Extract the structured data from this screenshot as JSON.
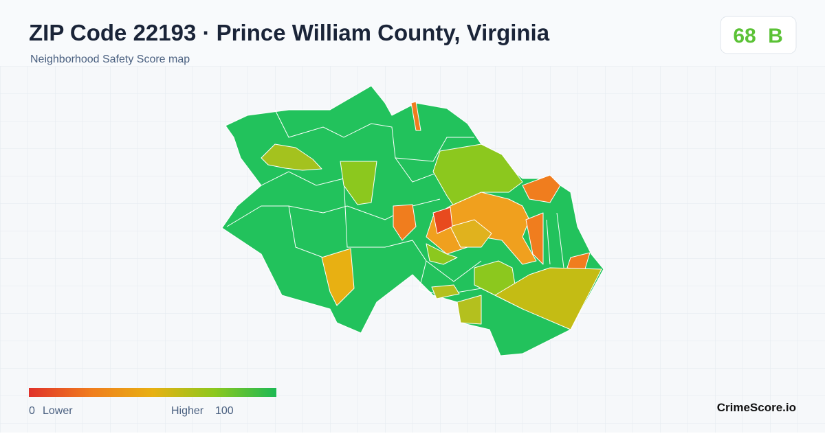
{
  "header": {
    "title": "ZIP Code 22193 · Prince William County, Virginia",
    "subtitle": "Neighborhood Safety Score map"
  },
  "score": {
    "value": "68",
    "grade": "B"
  },
  "legend": {
    "min": "0",
    "min_label": "Lower",
    "max_label": "Higher",
    "max": "100"
  },
  "brand": "CrimeScore.io"
}
